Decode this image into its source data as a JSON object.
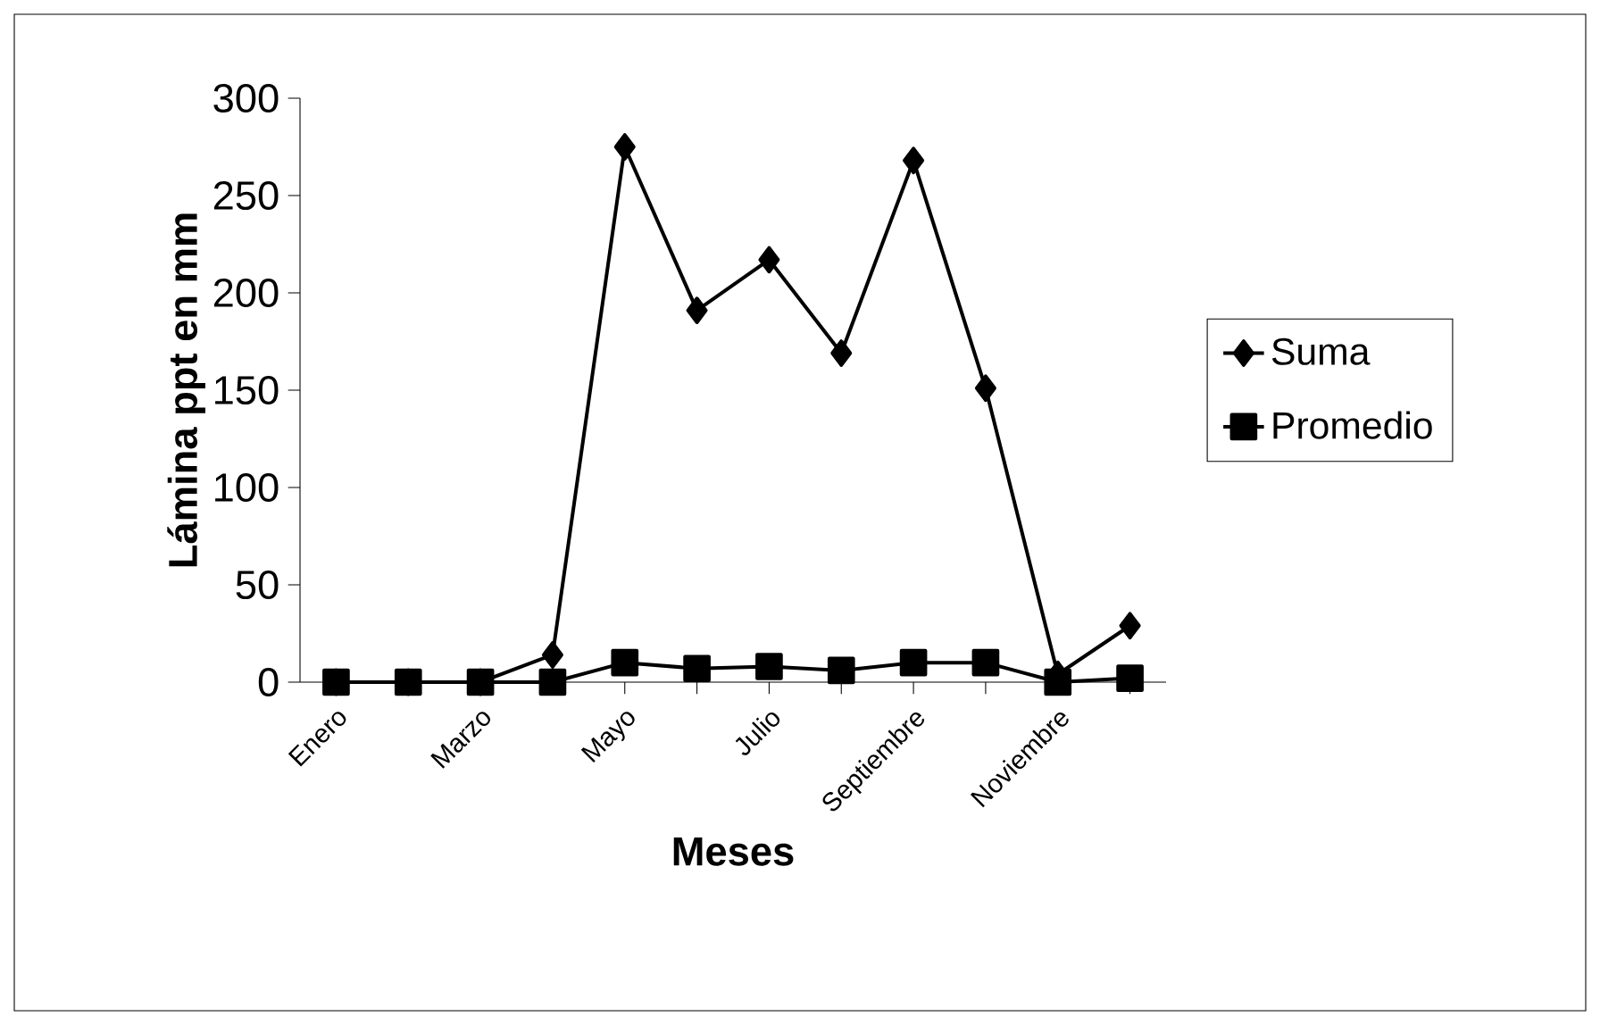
{
  "chart_data": {
    "type": "line",
    "xlabel": "Meses",
    "ylabel": "Lámina ppt en mm",
    "categories": [
      "Enero",
      null,
      "Marzo",
      null,
      "Mayo",
      null,
      "Julio",
      null,
      "Septiembre",
      null,
      "Noviembre",
      null
    ],
    "series": [
      {
        "name": "Suma",
        "color": "#000000",
        "marker": "diamond",
        "values": [
          0,
          0,
          0,
          14,
          275,
          191,
          217,
          169,
          268,
          151,
          4,
          29
        ]
      },
      {
        "name": "Promedio",
        "color": "#000000",
        "marker": "square",
        "values": [
          0,
          0,
          0,
          0,
          10,
          7,
          8,
          6,
          10,
          10,
          0,
          2
        ]
      }
    ],
    "ylim": [
      0,
      300
    ],
    "yticks": [
      0,
      50,
      100,
      150,
      200,
      250,
      300
    ],
    "legend": "right",
    "line_style": "solid"
  }
}
